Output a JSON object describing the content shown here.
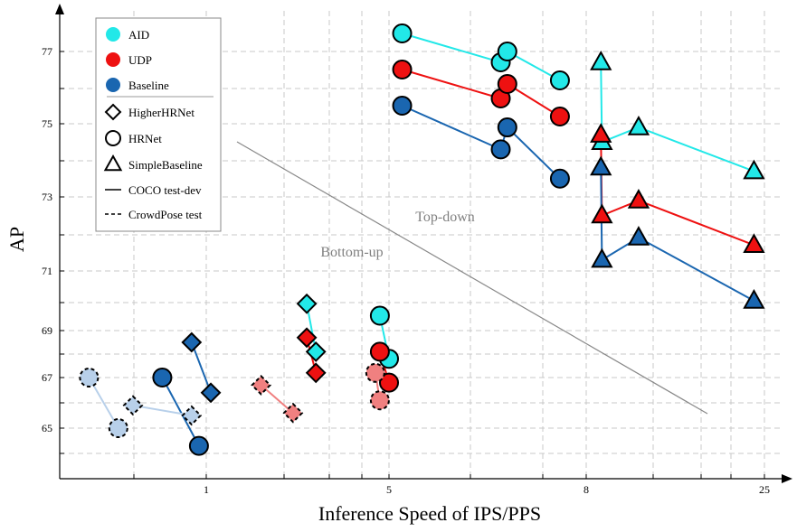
{
  "chart_data": {
    "type": "scatter",
    "xlabel": "Inference Speed of IPS/PPS",
    "ylabel": "AP",
    "x_ticks": [
      "1",
      "5",
      "8",
      "25"
    ],
    "y_ticks": [
      "65",
      "67",
      "69",
      "71",
      "73",
      "75",
      "77"
    ],
    "grid": true,
    "legend_position": "top-left",
    "legend": {
      "colors": [
        {
          "label": "AID",
          "color": "#22e8e8"
        },
        {
          "label": "UDP",
          "color": "#ee1111"
        },
        {
          "label": "Baseline",
          "color": "#1a66b0"
        }
      ],
      "shapes": [
        {
          "label": "HigherHRNet",
          "shape": "diamond"
        },
        {
          "label": "HRNet",
          "shape": "circle"
        },
        {
          "label": "SimpleBaseline",
          "shape": "triangle"
        }
      ],
      "lines": [
        {
          "label": "COCO test-dev",
          "style": "solid"
        },
        {
          "label": "CrowdPose test",
          "style": "dashed"
        }
      ]
    },
    "annotations": [
      {
        "text": "Bottom-up",
        "kind": "region"
      },
      {
        "text": "Top-down",
        "kind": "region"
      }
    ],
    "series": [
      {
        "method": "AID",
        "model": "HRNet",
        "dataset": "COCO test-dev",
        "color": "#22e8e8",
        "shape": "circle",
        "points": [
          [
            5.2,
            77.5
          ],
          [
            6.7,
            76.7
          ],
          [
            6.8,
            77.0
          ],
          [
            7.6,
            76.2
          ]
        ]
      },
      {
        "method": "UDP",
        "model": "HRNet",
        "dataset": "COCO test-dev",
        "color": "#ee1111",
        "shape": "circle",
        "points": [
          [
            5.2,
            76.5
          ],
          [
            6.7,
            75.7
          ],
          [
            6.8,
            76.1
          ],
          [
            7.6,
            75.2
          ]
        ]
      },
      {
        "method": "Baseline",
        "model": "HRNet",
        "dataset": "COCO test-dev",
        "color": "#1a66b0",
        "shape": "circle",
        "points": [
          [
            5.2,
            75.5
          ],
          [
            6.7,
            74.3
          ],
          [
            6.8,
            74.9
          ],
          [
            7.6,
            73.5
          ]
        ]
      },
      {
        "method": "AID",
        "model": "SimpleBaseline",
        "dataset": "COCO test-dev",
        "color": "#22e8e8",
        "shape": "triangle",
        "points": [
          [
            9.4,
            76.7
          ],
          [
            9.5,
            74.5
          ],
          [
            13.0,
            74.9
          ],
          [
            24.0,
            73.7
          ]
        ]
      },
      {
        "method": "UDP",
        "model": "SimpleBaseline",
        "dataset": "COCO test-dev",
        "color": "#ee1111",
        "shape": "triangle",
        "points": [
          [
            9.4,
            74.7
          ],
          [
            9.5,
            72.5
          ],
          [
            13.0,
            72.9
          ],
          [
            24.0,
            71.7
          ]
        ]
      },
      {
        "method": "Baseline",
        "model": "SimpleBaseline",
        "dataset": "COCO test-dev",
        "color": "#1a66b0",
        "shape": "triangle",
        "points": [
          [
            9.4,
            73.8
          ],
          [
            9.5,
            71.3
          ],
          [
            13.0,
            71.9
          ],
          [
            24.0,
            70.0
          ]
        ]
      },
      {
        "method": "AID",
        "model": "HigherHRNet",
        "dataset": "COCO test-dev",
        "color": "#22e8e8",
        "shape": "diamond",
        "points": [
          [
            3.2,
            69.9
          ],
          [
            3.4,
            68.1
          ]
        ]
      },
      {
        "method": "AID",
        "model": "HRNet",
        "dataset": "COCO test-dev",
        "color": "#22e8e8",
        "shape": "circle",
        "points": [
          [
            4.8,
            69.5
          ],
          [
            5.0,
            67.8
          ]
        ]
      },
      {
        "method": "UDP",
        "model": "HigherHRNet",
        "dataset": "COCO test-dev",
        "color": "#ee1111",
        "shape": "diamond",
        "points": [
          [
            3.2,
            68.7
          ],
          [
            3.4,
            67.2
          ]
        ]
      },
      {
        "method": "UDP",
        "model": "HRNet",
        "dataset": "COCO test-dev",
        "color": "#ee1111",
        "shape": "circle",
        "points": [
          [
            4.8,
            68.1
          ],
          [
            5.0,
            66.8
          ]
        ]
      },
      {
        "method": "UDP",
        "model": "HigherHRNet",
        "dataset": "CrowdPose test",
        "color": "#f08080",
        "shape": "diamond",
        "points": [
          [
            2.2,
            66.7
          ],
          [
            2.9,
            65.6
          ]
        ]
      },
      {
        "method": "UDP",
        "model": "HRNet",
        "dataset": "CrowdPose test",
        "color": "#f08080",
        "shape": "circle",
        "points": [
          [
            4.7,
            67.2
          ],
          [
            4.8,
            66.1
          ]
        ]
      },
      {
        "method": "Baseline",
        "model": "HigherHRNet",
        "dataset": "COCO test-dev",
        "color": "#1a66b0",
        "shape": "diamond",
        "points": [
          [
            0.9,
            68.5
          ],
          [
            1.1,
            66.4
          ]
        ]
      },
      {
        "method": "Baseline",
        "model": "HRNet",
        "dataset": "COCO test-dev",
        "color": "#1a66b0",
        "shape": "circle",
        "points": [
          [
            0.7,
            67.0
          ],
          [
            0.95,
            64.3
          ]
        ]
      },
      {
        "method": "Baseline",
        "model": "HigherHRNet",
        "dataset": "CrowdPose test",
        "color": "#b8d0ea",
        "shape": "diamond",
        "points": [
          [
            0.5,
            65.9
          ],
          [
            0.9,
            65.5
          ]
        ]
      },
      {
        "method": "Baseline",
        "model": "HRNet",
        "dataset": "CrowdPose test",
        "color": "#b8d0ea",
        "shape": "circle",
        "points": [
          [
            0.2,
            67.0
          ],
          [
            0.4,
            65.0
          ]
        ]
      }
    ]
  }
}
